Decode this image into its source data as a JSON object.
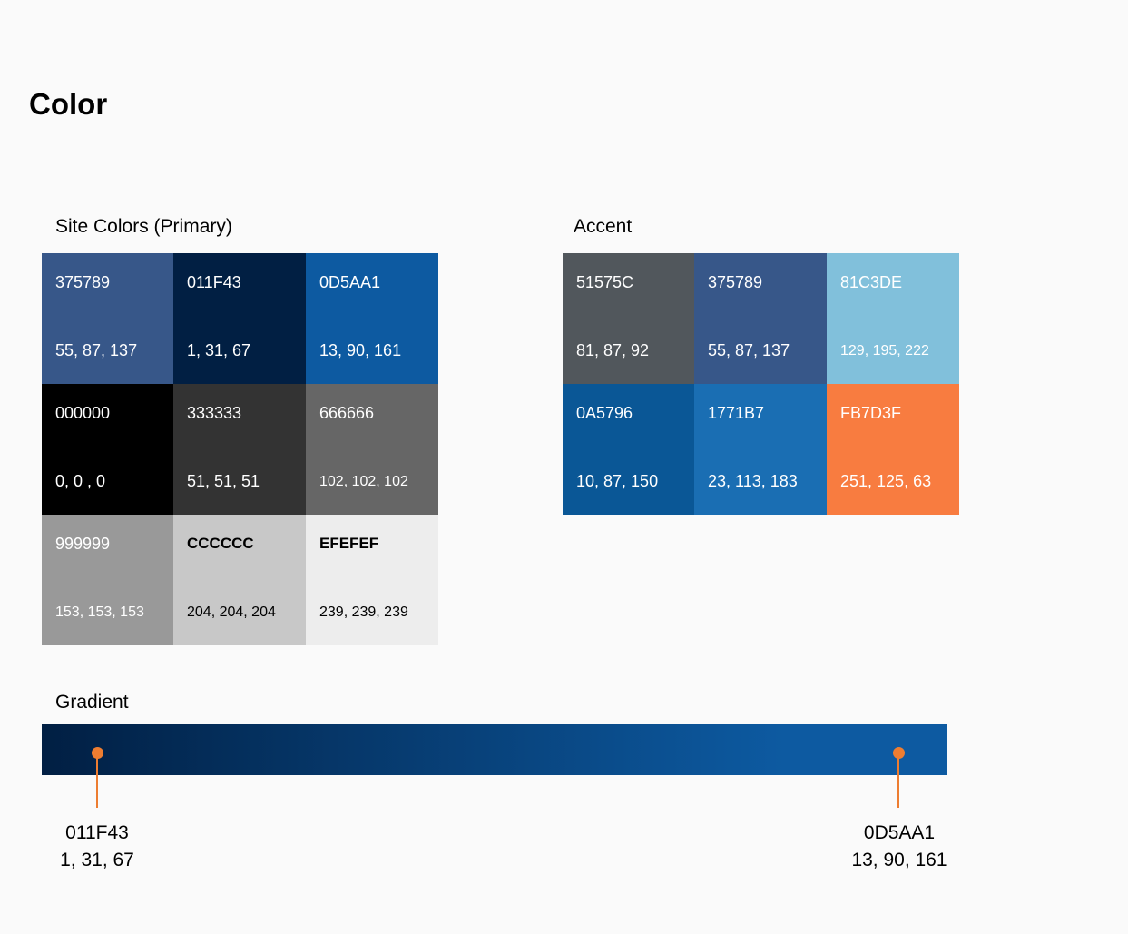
{
  "title": "Color",
  "primary": {
    "label": "Site Colors (Primary)",
    "swatches": [
      {
        "hex": "375789",
        "rgb": "55, 87, 137",
        "color": "#375789",
        "text_color": "#ffffff"
      },
      {
        "hex": "011F43",
        "rgb": "1, 31, 67",
        "color": "#011f43",
        "text_color": "#ffffff"
      },
      {
        "hex": "0D5AA1",
        "rgb": "13, 90, 161",
        "color": "#0d5aa1",
        "text_color": "#ffffff"
      },
      {
        "hex": "000000",
        "rgb": "0, 0 , 0",
        "color": "#000000",
        "text_color": "#ffffff"
      },
      {
        "hex": "333333",
        "rgb": "51, 51, 51",
        "color": "#333333",
        "text_color": "#ffffff"
      },
      {
        "hex": "666666",
        "rgb": "102, 102, 102",
        "color": "#666666",
        "text_color": "#ffffff"
      },
      {
        "hex": "999999",
        "rgb": "153, 153, 153",
        "color": "#999999",
        "text_color": "#ffffff"
      },
      {
        "hex": "CCCCCC",
        "rgb": "204, 204, 204",
        "color": "#c8c8c8",
        "text_color": "#000000"
      },
      {
        "hex": "EFEFEF",
        "rgb": "239, 239, 239",
        "color": "#ededed",
        "text_color": "#000000"
      }
    ]
  },
  "accent": {
    "label": "Accent",
    "swatches": [
      {
        "hex": "51575C",
        "rgb": "81, 87, 92",
        "color": "#51575c",
        "text_color": "#ffffff"
      },
      {
        "hex": "375789",
        "rgb": "55, 87, 137",
        "color": "#375789",
        "text_color": "#ffffff"
      },
      {
        "hex": "81C3DE",
        "rgb": "129, 195, 222",
        "color": "#81c0db",
        "text_color": "#ffffff"
      },
      {
        "hex": "0A5796",
        "rgb": "10, 87, 150",
        "color": "#0a5796",
        "text_color": "#ffffff"
      },
      {
        "hex": "1771B7",
        "rgb": "23, 113, 183",
        "color": "#1a6eb3",
        "text_color": "#ffffff"
      },
      {
        "hex": "FB7D3F",
        "rgb": "251, 125, 63",
        "color": "#f87c40",
        "text_color": "#ffffff"
      }
    ]
  },
  "gradient": {
    "label": "Gradient",
    "start": {
      "hex": "011F43",
      "rgb": "1, 31, 67",
      "color": "#011f43"
    },
    "end": {
      "hex": "0D5AA1",
      "rgb": "13, 90, 161",
      "color": "#0d5aa1"
    },
    "marker_color": "#ed7d31"
  }
}
